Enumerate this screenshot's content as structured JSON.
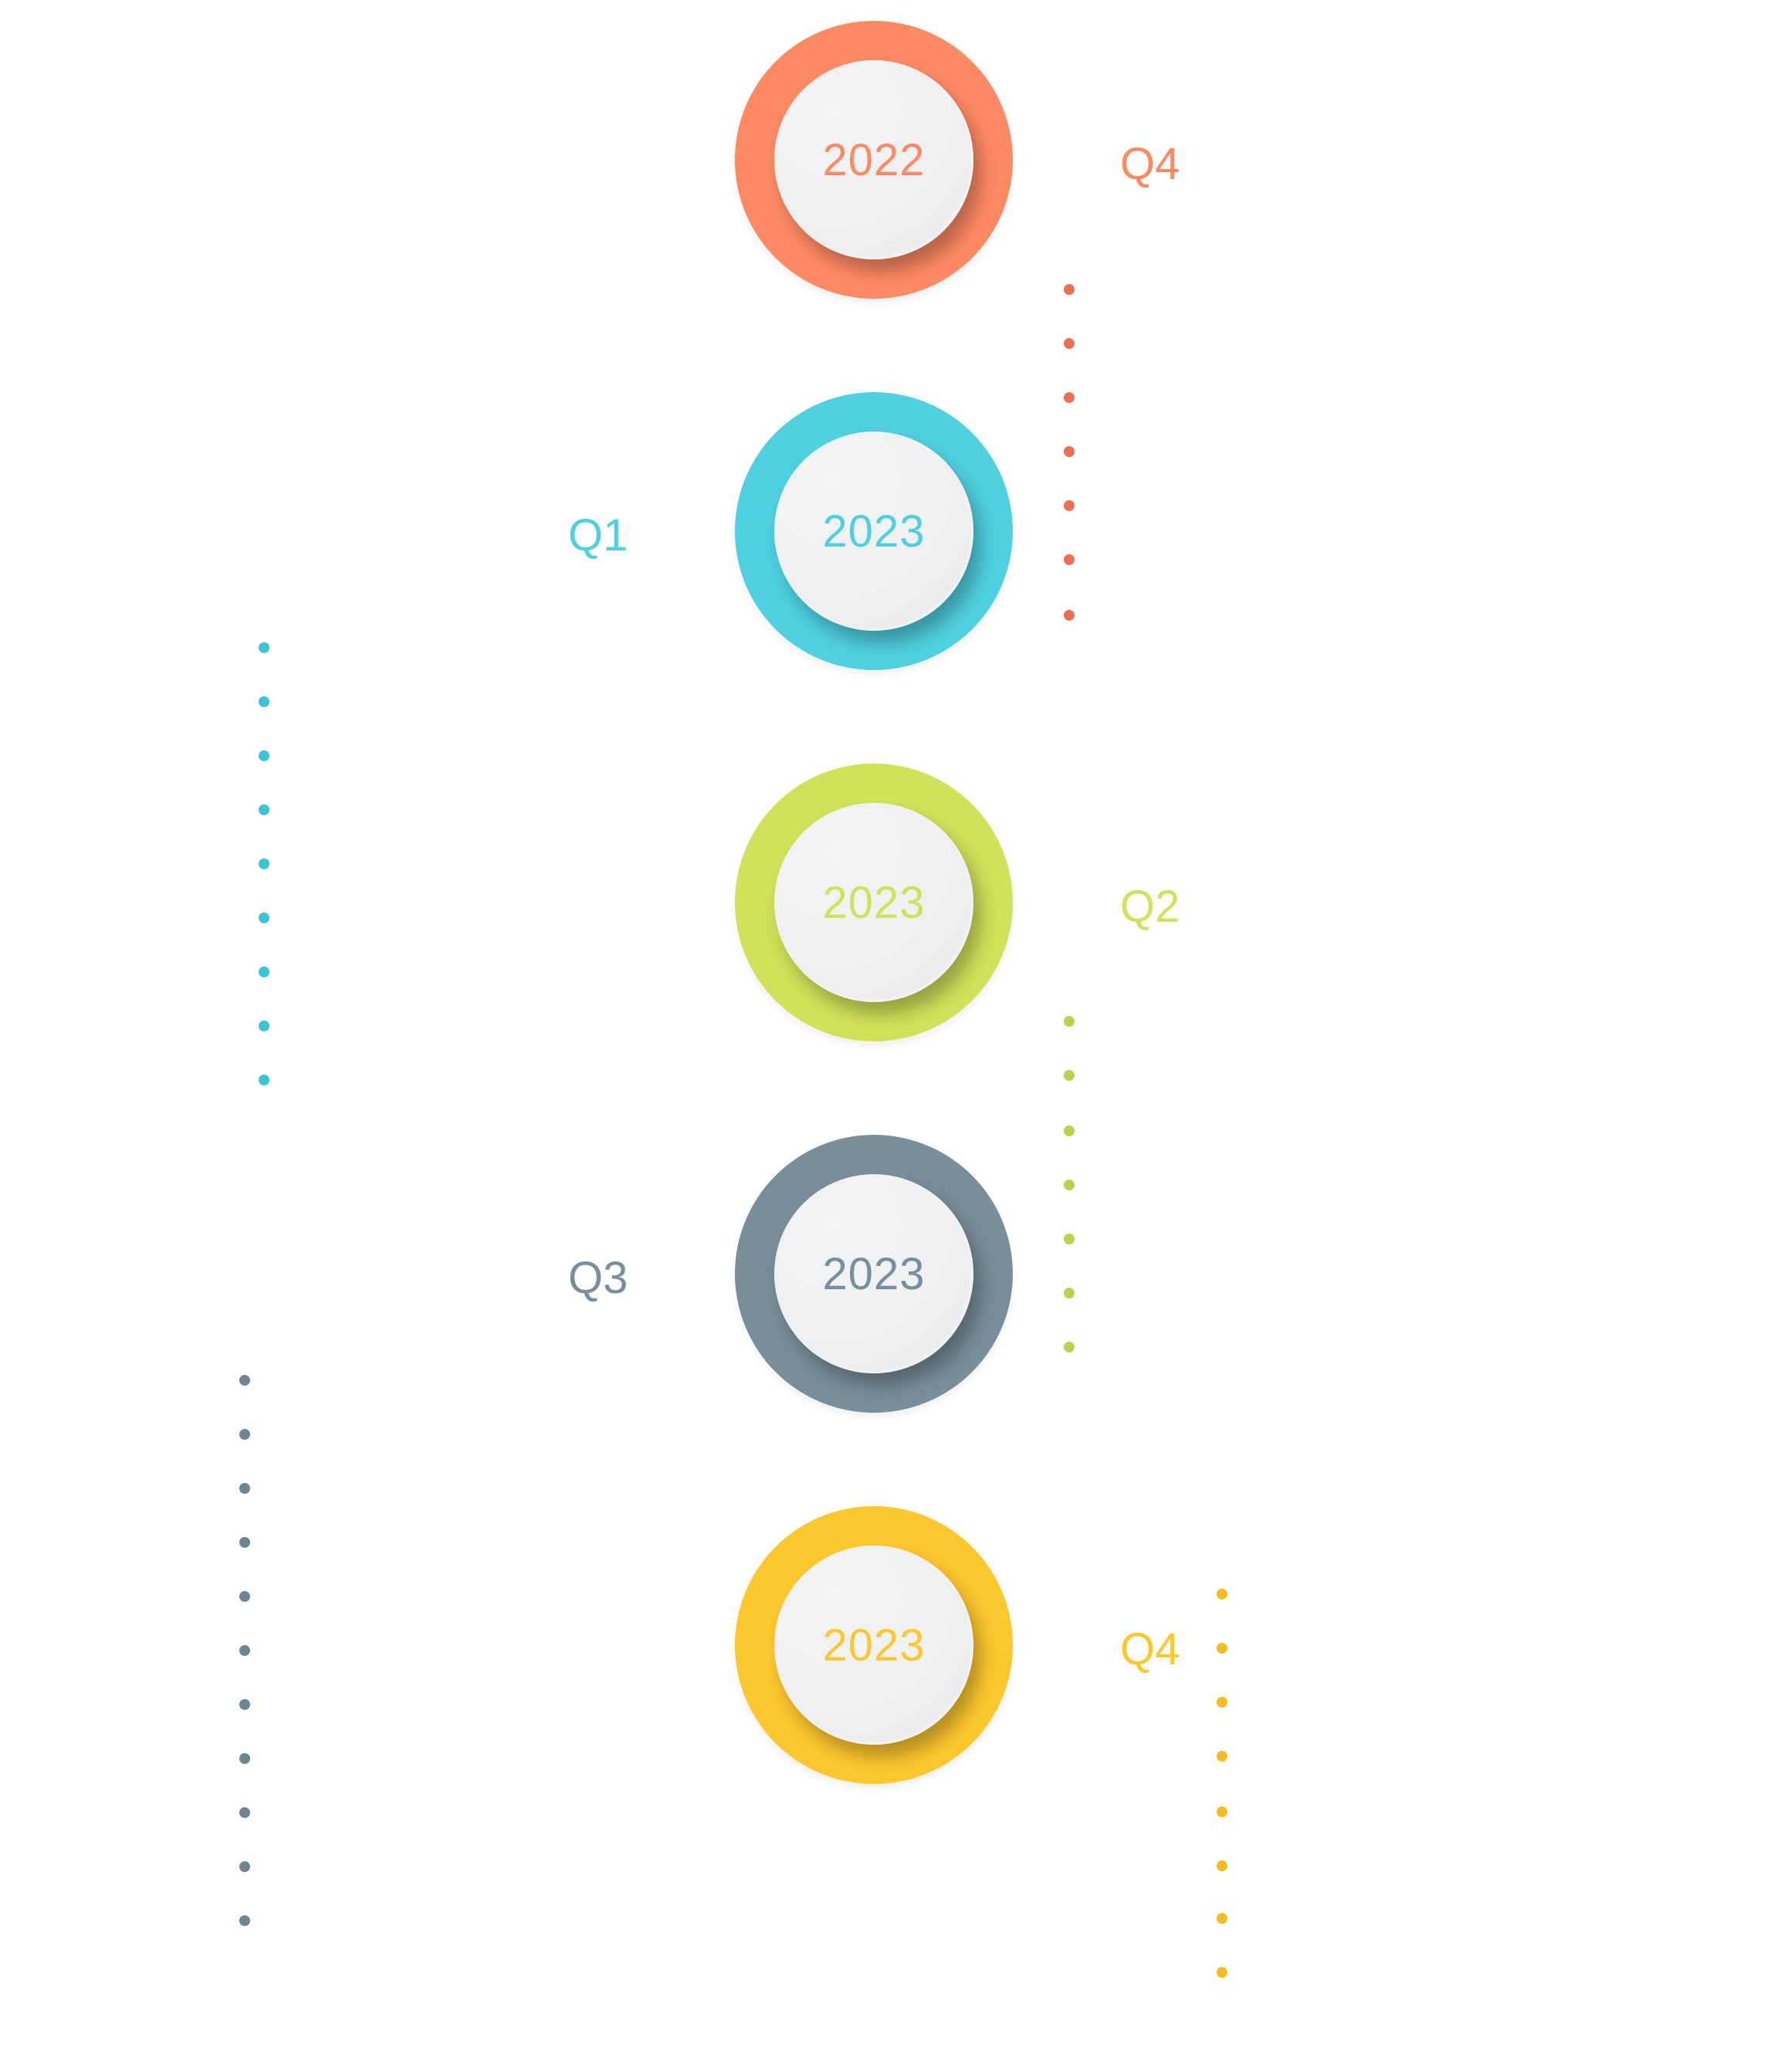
{
  "milestones": [
    {
      "year": "2022",
      "quarter": "Q4",
      "color": "#fe8a64",
      "dot_color": "#ef6f52"
    },
    {
      "year": "2023",
      "quarter": "Q1",
      "color": "#4fd0e0",
      "dot_color": "#3ac4d8"
    },
    {
      "year": "2023",
      "quarter": "Q2",
      "color": "#d2e15a",
      "dot_color": "#bdd24a"
    },
    {
      "year": "2023",
      "quarter": "Q3",
      "color": "#788e9a",
      "dot_color": "#6d8492"
    },
    {
      "year": "2023",
      "quarter": "Q4",
      "color": "#fdc72e",
      "dot_color": "#f6bb22"
    }
  ]
}
